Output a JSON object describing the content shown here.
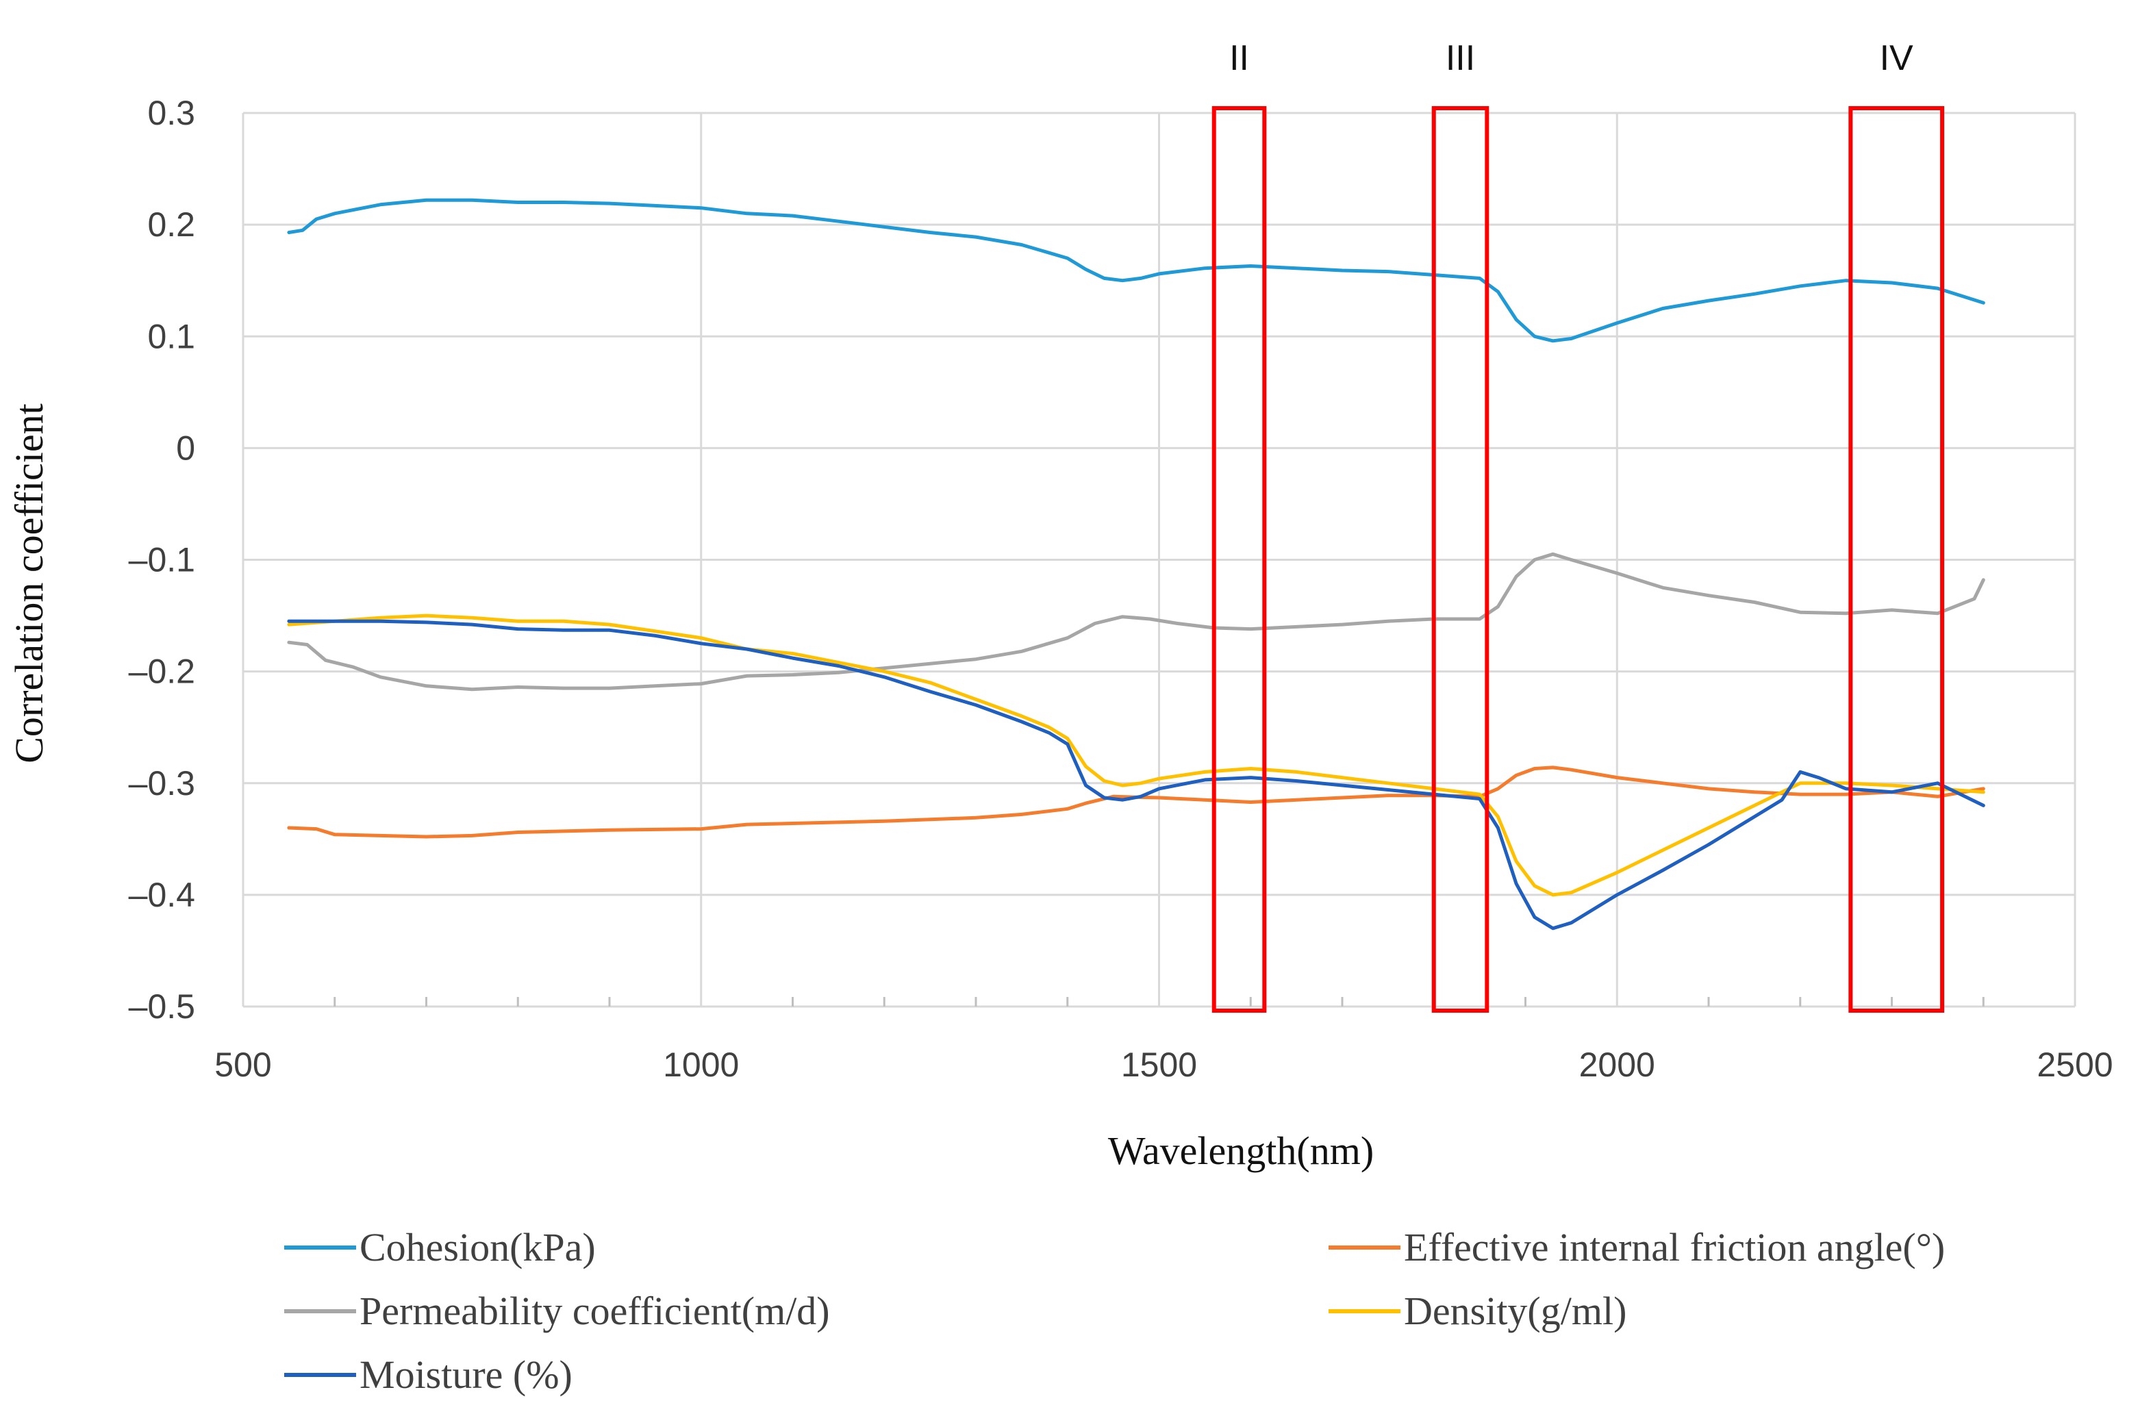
{
  "chart_data": {
    "type": "line",
    "title": "",
    "xlabel": "Wavelength(nm)",
    "ylabel": "Correlation coefficient",
    "xlim": [
      500,
      2500
    ],
    "ylim": [
      -0.5,
      0.3
    ],
    "x_ticks": [
      500,
      1000,
      1500,
      2000,
      2500
    ],
    "x_tick_labels": [
      "500",
      "1000",
      "1500",
      "2000",
      "2500"
    ],
    "y_ticks": [
      0.3,
      0.2,
      0.1,
      0,
      -0.1,
      -0.2,
      -0.3,
      -0.4,
      -0.5
    ],
    "y_tick_labels": [
      "0.3",
      "0.2",
      "0.1",
      "0",
      "–0.1",
      "–0.2",
      "–0.3",
      "–0.4",
      "–0.5"
    ],
    "grid": true,
    "legend_position": "bottom",
    "bands": [
      {
        "label": "II",
        "x_start": 1560,
        "x_end": 1615,
        "color": "#ff0000"
      },
      {
        "label": "III",
        "x_start": 1800,
        "x_end": 1858,
        "color": "#ff0000"
      },
      {
        "label": "IV",
        "x_start": 2255,
        "x_end": 2355,
        "color": "#ff0000"
      }
    ],
    "series": [
      {
        "name": "Cohesion(kPa)",
        "color": "#1f9ad6",
        "x": [
          550,
          565,
          580,
          600,
          650,
          700,
          750,
          800,
          850,
          900,
          950,
          1000,
          1050,
          1100,
          1150,
          1200,
          1250,
          1300,
          1350,
          1400,
          1420,
          1440,
          1460,
          1480,
          1500,
          1550,
          1600,
          1650,
          1700,
          1750,
          1800,
          1850,
          1870,
          1890,
          1910,
          1930,
          1950,
          2000,
          2050,
          2100,
          2150,
          2200,
          2250,
          2300,
          2350,
          2400
        ],
        "values": [
          0.193,
          0.195,
          0.205,
          0.21,
          0.218,
          0.222,
          0.222,
          0.22,
          0.22,
          0.219,
          0.217,
          0.215,
          0.21,
          0.208,
          0.203,
          0.198,
          0.193,
          0.189,
          0.182,
          0.17,
          0.16,
          0.152,
          0.15,
          0.152,
          0.156,
          0.161,
          0.163,
          0.161,
          0.159,
          0.158,
          0.155,
          0.152,
          0.14,
          0.115,
          0.1,
          0.096,
          0.098,
          0.112,
          0.125,
          0.132,
          0.138,
          0.145,
          0.15,
          0.148,
          0.143,
          0.13
        ]
      },
      {
        "name": "Effective internal friction angle(°)",
        "color": "#f47c2c",
        "x": [
          550,
          580,
          600,
          650,
          700,
          750,
          800,
          900,
          1000,
          1050,
          1100,
          1200,
          1300,
          1350,
          1400,
          1420,
          1450,
          1500,
          1550,
          1600,
          1650,
          1700,
          1750,
          1800,
          1850,
          1870,
          1890,
          1910,
          1930,
          1950,
          2000,
          2050,
          2100,
          2150,
          2200,
          2250,
          2300,
          2350,
          2400
        ],
        "values": [
          -0.34,
          -0.341,
          -0.346,
          -0.347,
          -0.348,
          -0.347,
          -0.344,
          -0.342,
          -0.341,
          -0.337,
          -0.336,
          -0.334,
          -0.331,
          -0.328,
          -0.323,
          -0.318,
          -0.312,
          -0.313,
          -0.315,
          -0.317,
          -0.315,
          -0.313,
          -0.311,
          -0.311,
          -0.312,
          -0.305,
          -0.293,
          -0.287,
          -0.286,
          -0.288,
          -0.295,
          -0.3,
          -0.305,
          -0.308,
          -0.31,
          -0.31,
          -0.308,
          -0.312,
          -0.305
        ]
      },
      {
        "name": "Permeability coefficient(m/d)",
        "color": "#a6a6a6",
        "x": [
          550,
          570,
          590,
          620,
          650,
          700,
          750,
          800,
          850,
          900,
          950,
          1000,
          1050,
          1100,
          1150,
          1200,
          1250,
          1300,
          1350,
          1400,
          1430,
          1460,
          1490,
          1520,
          1560,
          1600,
          1650,
          1700,
          1750,
          1800,
          1850,
          1870,
          1890,
          1910,
          1930,
          1950,
          2000,
          2050,
          2100,
          2150,
          2200,
          2250,
          2300,
          2350,
          2390,
          2400
        ],
        "values": [
          -0.174,
          -0.176,
          -0.19,
          -0.196,
          -0.205,
          -0.213,
          -0.216,
          -0.214,
          -0.215,
          -0.215,
          -0.213,
          -0.211,
          -0.204,
          -0.203,
          -0.201,
          -0.197,
          -0.193,
          -0.189,
          -0.182,
          -0.17,
          -0.157,
          -0.151,
          -0.153,
          -0.157,
          -0.161,
          -0.162,
          -0.16,
          -0.158,
          -0.155,
          -0.153,
          -0.153,
          -0.142,
          -0.115,
          -0.1,
          -0.095,
          -0.1,
          -0.112,
          -0.125,
          -0.132,
          -0.138,
          -0.147,
          -0.148,
          -0.145,
          -0.148,
          -0.135,
          -0.118
        ]
      },
      {
        "name": "Density(g/ml)",
        "color": "#ffc000",
        "x": [
          550,
          600,
          650,
          700,
          750,
          800,
          850,
          900,
          950,
          1000,
          1050,
          1100,
          1150,
          1200,
          1250,
          1300,
          1350,
          1380,
          1400,
          1420,
          1440,
          1460,
          1480,
          1500,
          1550,
          1600,
          1650,
          1700,
          1750,
          1800,
          1850,
          1870,
          1890,
          1910,
          1930,
          1950,
          2000,
          2050,
          2100,
          2150,
          2200,
          2250,
          2300,
          2350,
          2400
        ],
        "values": [
          -0.158,
          -0.155,
          -0.152,
          -0.15,
          -0.152,
          -0.155,
          -0.155,
          -0.158,
          -0.164,
          -0.17,
          -0.18,
          -0.184,
          -0.192,
          -0.2,
          -0.21,
          -0.225,
          -0.24,
          -0.25,
          -0.26,
          -0.285,
          -0.298,
          -0.302,
          -0.3,
          -0.296,
          -0.29,
          -0.287,
          -0.29,
          -0.295,
          -0.3,
          -0.305,
          -0.31,
          -0.33,
          -0.37,
          -0.392,
          -0.4,
          -0.398,
          -0.38,
          -0.36,
          -0.34,
          -0.32,
          -0.3,
          -0.3,
          -0.302,
          -0.305,
          -0.308
        ]
      },
      {
        "name": "Moisture (%)",
        "color": "#1f5fbf",
        "x": [
          550,
          600,
          650,
          700,
          750,
          800,
          850,
          900,
          950,
          1000,
          1050,
          1100,
          1150,
          1200,
          1250,
          1300,
          1350,
          1380,
          1400,
          1420,
          1440,
          1460,
          1480,
          1500,
          1550,
          1600,
          1650,
          1700,
          1750,
          1800,
          1850,
          1870,
          1890,
          1910,
          1930,
          1950,
          2000,
          2050,
          2100,
          2150,
          2180,
          2200,
          2220,
          2250,
          2300,
          2350,
          2400
        ],
        "values": [
          -0.155,
          -0.155,
          -0.155,
          -0.156,
          -0.158,
          -0.162,
          -0.163,
          -0.163,
          -0.168,
          -0.175,
          -0.18,
          -0.188,
          -0.195,
          -0.205,
          -0.218,
          -0.23,
          -0.245,
          -0.255,
          -0.265,
          -0.302,
          -0.313,
          -0.315,
          -0.312,
          -0.305,
          -0.297,
          -0.295,
          -0.298,
          -0.302,
          -0.306,
          -0.31,
          -0.314,
          -0.34,
          -0.39,
          -0.42,
          -0.43,
          -0.425,
          -0.4,
          -0.378,
          -0.355,
          -0.33,
          -0.315,
          -0.29,
          -0.295,
          -0.305,
          -0.308,
          -0.3,
          -0.32
        ]
      }
    ]
  }
}
